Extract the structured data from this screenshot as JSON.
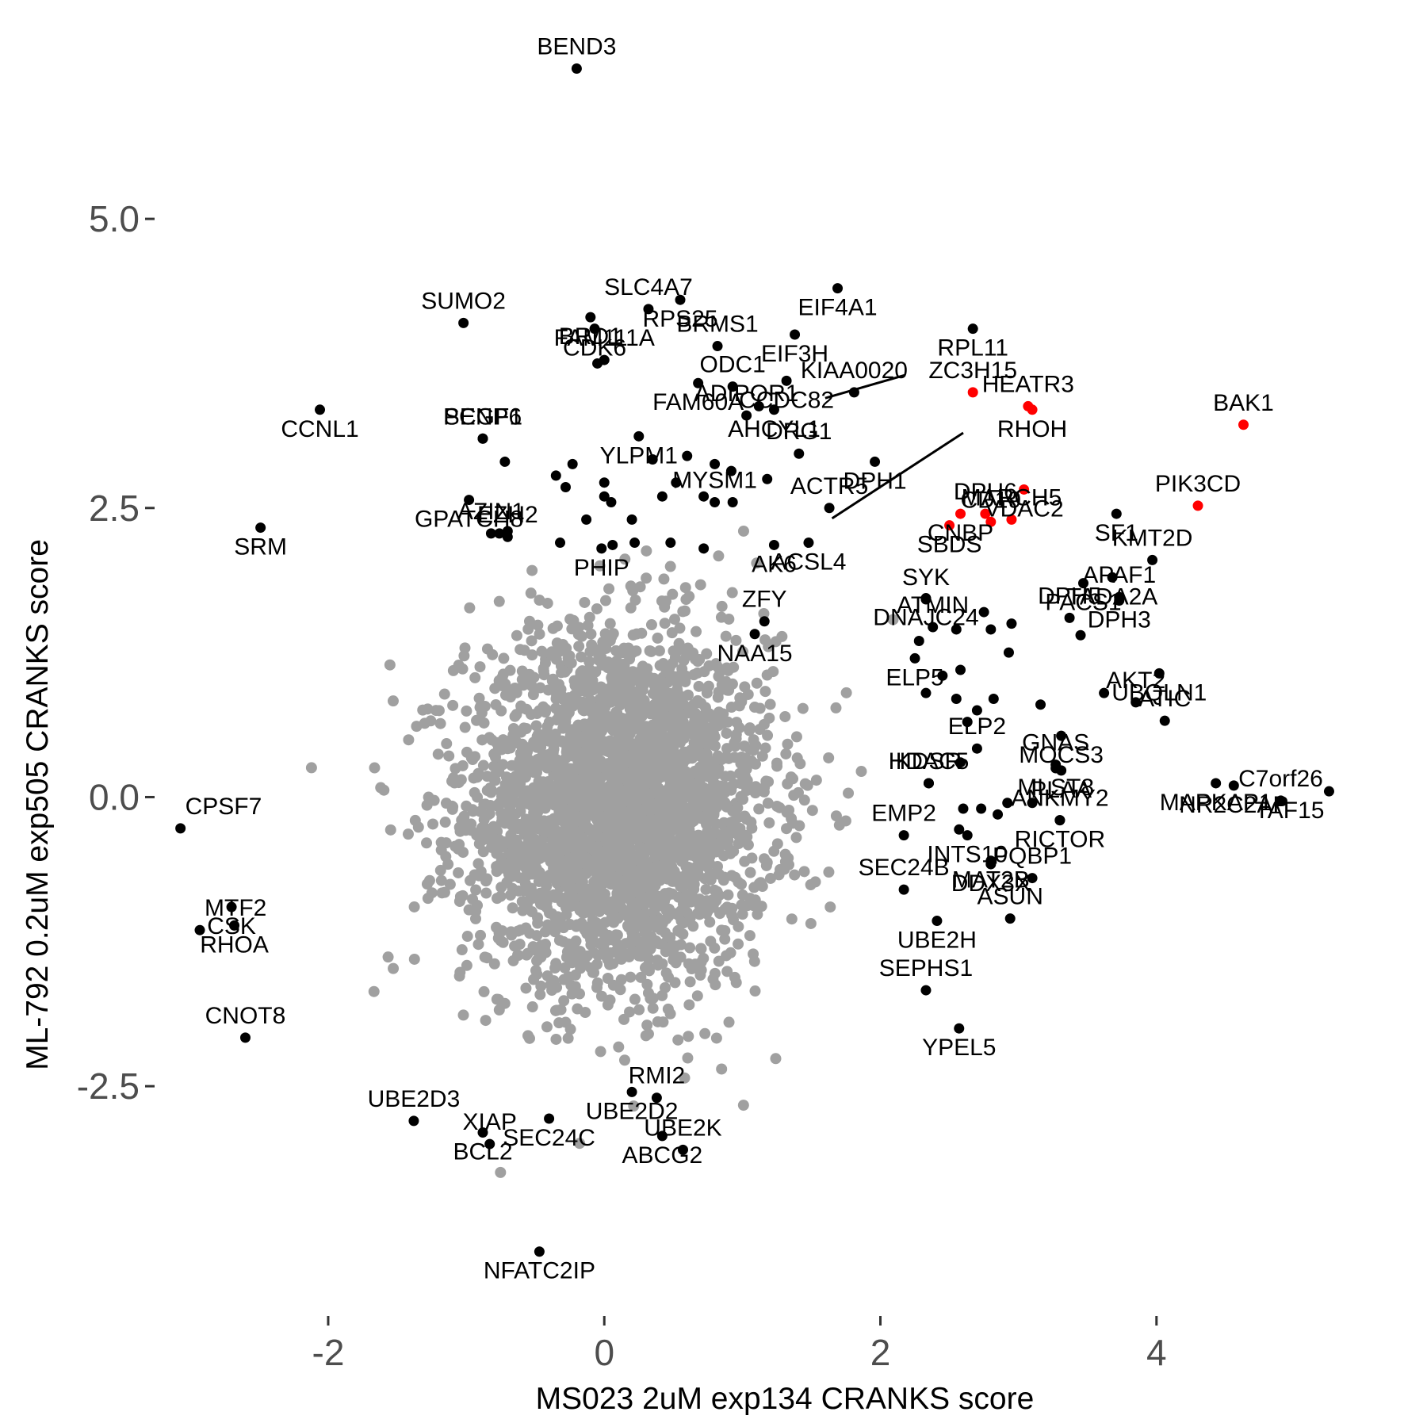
{
  "chart_data": {
    "type": "scatter",
    "xlabel": "MS023 2uM exp134 CRANKS score",
    "ylabel": "ML-792 0.2uM exp505 CRANKS score",
    "xlim": [
      -3.2,
      5.5
    ],
    "ylim": [
      -4.35,
      6.55
    ],
    "x_ticks": [
      -2,
      0,
      2,
      4
    ],
    "y_ticks": [
      -2.5,
      0.0,
      2.5,
      5.0
    ],
    "x_tick_labels": [
      "-2",
      "0",
      "2",
      "4"
    ],
    "y_tick_labels": [
      "-2.5",
      "0.0",
      "2.5",
      "5.0"
    ],
    "grid": false,
    "colors": {
      "background": "#ffffff",
      "bulk": "#a0a0a0",
      "highlight": "#000000",
      "selected": "#ff0000",
      "tick": "#333333"
    },
    "bulk_cloud": {
      "description_free": true,
      "count": 3200,
      "center_x": 0.1,
      "center_y": -0.1,
      "sd_x": 0.55,
      "sd_y": 0.75
    },
    "labeled_points": [
      {
        "gene": "BEND3",
        "x": -0.2,
        "y": 6.3,
        "color": "black"
      },
      {
        "gene": "RPS25",
        "x": 0.55,
        "y": 4.3,
        "color": "black"
      },
      {
        "gene": "ODC1",
        "x": 0.93,
        "y": 3.55,
        "color": "black"
      },
      {
        "gene": "EIF4A1",
        "x": 1.69,
        "y": 4.4,
        "color": "black"
      },
      {
        "gene": "SLC4A7",
        "x": 0.32,
        "y": 4.22,
        "color": "black"
      },
      {
        "gene": "BRD1",
        "x": -0.1,
        "y": 4.15,
        "color": "black"
      },
      {
        "gene": "BRMS1",
        "x": 0.82,
        "y": 3.9,
        "color": "black"
      },
      {
        "gene": "EIF3H",
        "x": 1.38,
        "y": 4.0,
        "color": "black"
      },
      {
        "gene": "SUMO2",
        "x": -1.02,
        "y": 4.1,
        "color": "black"
      },
      {
        "gene": "CDK6",
        "x": -0.07,
        "y": 4.05,
        "color": "black"
      },
      {
        "gene": "FAM111A",
        "x": 0.0,
        "y": 3.78,
        "color": "black"
      },
      {
        "gene": "CCDC82",
        "x": 1.32,
        "y": 3.6,
        "color": "black"
      },
      {
        "gene": "KIAA0020",
        "x": 1.81,
        "y": 3.5,
        "color": "black"
      },
      {
        "gene": "RPL11",
        "x": 2.67,
        "y": 4.05,
        "color": "black"
      },
      {
        "gene": "ZC3H15",
        "x": 2.67,
        "y": 3.5,
        "color": "red"
      },
      {
        "gene": "CCNL1",
        "x": -2.06,
        "y": 3.35,
        "color": "black"
      },
      {
        "gene": "PCGF1",
        "x": -0.88,
        "y": 3.1,
        "color": "black"
      },
      {
        "gene": "FAM60A",
        "x": 0.68,
        "y": 3.58,
        "color": "black"
      },
      {
        "gene": "HEATR3",
        "x": 3.07,
        "y": 3.38,
        "color": "red"
      },
      {
        "gene": "RHOH",
        "x": 3.1,
        "y": 3.35,
        "color": "red"
      },
      {
        "gene": "ADIPOR1",
        "x": 1.03,
        "y": 3.3,
        "color": "black"
      },
      {
        "gene": "AHCYL1",
        "x": 1.23,
        "y": 3.35,
        "color": "black"
      },
      {
        "gene": "SENP6",
        "x": -0.88,
        "y": 3.1,
        "color": "black"
      },
      {
        "gene": "YLPM1",
        "x": 0.25,
        "y": 3.12,
        "color": "black"
      },
      {
        "gene": "DRG1",
        "x": 1.41,
        "y": 2.97,
        "color": "black"
      },
      {
        "gene": "DPH1",
        "x": 1.96,
        "y": 2.9,
        "color": "black"
      },
      {
        "gene": "CD19",
        "x": 2.8,
        "y": 2.38,
        "color": "red"
      },
      {
        "gene": "VDAC2",
        "x": 3.04,
        "y": 2.66,
        "color": "red"
      },
      {
        "gene": "BAK1",
        "x": 4.63,
        "y": 3.22,
        "color": "red"
      },
      {
        "gene": "GPATCH8",
        "x": -0.98,
        "y": 2.57,
        "color": "black"
      },
      {
        "gene": "ACTR5",
        "x": 1.63,
        "y": 2.5,
        "color": "black"
      },
      {
        "gene": "CNBP",
        "x": 2.58,
        "y": 2.45,
        "color": "red"
      },
      {
        "gene": "MARCH5",
        "x": 2.95,
        "y": 2.4,
        "color": "red"
      },
      {
        "gene": "SF1",
        "x": 3.71,
        "y": 2.45,
        "color": "black"
      },
      {
        "gene": "PIK3CD",
        "x": 4.3,
        "y": 2.52,
        "color": "red"
      },
      {
        "gene": "ACSL4",
        "x": 1.48,
        "y": 2.2,
        "color": "black"
      },
      {
        "gene": "MYSM1",
        "x": 0.8,
        "y": 2.55,
        "color": "black"
      },
      {
        "gene": "SRM",
        "x": -2.49,
        "y": 2.33,
        "color": "black"
      },
      {
        "gene": "AZIN1",
        "x": -0.82,
        "y": 2.28,
        "color": "black"
      },
      {
        "gene": "SBDS",
        "x": 2.5,
        "y": 2.35,
        "color": "red"
      },
      {
        "gene": "DPH6",
        "x": 2.76,
        "y": 2.45,
        "color": "red"
      },
      {
        "gene": "TADA2A",
        "x": 3.68,
        "y": 1.9,
        "color": "black"
      },
      {
        "gene": "KMT2D",
        "x": 3.97,
        "y": 2.05,
        "color": "black"
      },
      {
        "gene": "AK6",
        "x": 1.23,
        "y": 2.18,
        "color": "black"
      },
      {
        "gene": "EZH2",
        "x": -0.7,
        "y": 2.25,
        "color": "black"
      },
      {
        "gene": "PHIP",
        "x": -0.02,
        "y": 2.15,
        "color": "black"
      },
      {
        "gene": "ZFY",
        "x": 1.16,
        "y": 1.52,
        "color": "black"
      },
      {
        "gene": "DNAJC24",
        "x": 2.33,
        "y": 1.72,
        "color": "black"
      },
      {
        "gene": "ATMIN",
        "x": 2.38,
        "y": 1.47,
        "color": "black"
      },
      {
        "gene": "PACS1",
        "x": 3.47,
        "y": 1.85,
        "color": "black"
      },
      {
        "gene": "APAF1",
        "x": 3.73,
        "y": 1.73,
        "color": "black"
      },
      {
        "gene": "NAA15",
        "x": 1.09,
        "y": 1.41,
        "color": "black"
      },
      {
        "gene": "SYK",
        "x": 2.33,
        "y": 1.71,
        "color": "black"
      },
      {
        "gene": "DPH3",
        "x": 3.73,
        "y": 1.7,
        "color": "black"
      },
      {
        "gene": "AKT2",
        "x": 3.85,
        "y": 0.82,
        "color": "black"
      },
      {
        "gene": "ELP5",
        "x": 2.25,
        "y": 1.2,
        "color": "black"
      },
      {
        "gene": "DPH5",
        "x": 3.37,
        "y": 1.55,
        "color": "black"
      },
      {
        "gene": "UBQLN1",
        "x": 4.02,
        "y": 1.07,
        "color": "black"
      },
      {
        "gene": "ATIC",
        "x": 4.06,
        "y": 0.66,
        "color": "black"
      },
      {
        "gene": "TAF15",
        "x": 5.25,
        "y": 0.05,
        "color": "black"
      },
      {
        "gene": "ELP2",
        "x": 2.7,
        "y": 0.42,
        "color": "black"
      },
      {
        "gene": "MOCS3",
        "x": 3.31,
        "y": 0.53,
        "color": "black"
      },
      {
        "gene": "KDSR",
        "x": 2.35,
        "y": 0.12,
        "color": "black"
      },
      {
        "gene": "NR2C2AP",
        "x": 4.56,
        "y": 0.1,
        "color": "black"
      },
      {
        "gene": "GNAS",
        "x": 3.27,
        "y": 0.28,
        "color": "black"
      },
      {
        "gene": "PLAA",
        "x": 3.31,
        "y": 0.23,
        "color": "black"
      },
      {
        "gene": "HDAC5",
        "x": 2.35,
        "y": 0.12,
        "color": "black"
      },
      {
        "gene": "MLST8",
        "x": 3.27,
        "y": 0.25,
        "color": "black"
      },
      {
        "gene": "EMP2",
        "x": 2.17,
        "y": -0.33,
        "color": "black"
      },
      {
        "gene": "INTS10",
        "x": 2.63,
        "y": -0.33,
        "color": "black"
      },
      {
        "gene": "ANKMY2",
        "x": 3.3,
        "y": -0.2,
        "color": "black"
      },
      {
        "gene": "RICTOR",
        "x": 3.3,
        "y": -0.2,
        "color": "black"
      },
      {
        "gene": "C7orf26",
        "x": 4.9,
        "y": -0.03,
        "color": "black"
      },
      {
        "gene": "MAPKAP1",
        "x": 4.43,
        "y": 0.12,
        "color": "black"
      },
      {
        "gene": "SEC24B",
        "x": 2.17,
        "y": -0.8,
        "color": "black"
      },
      {
        "gene": "MAT2B",
        "x": 2.8,
        "y": -0.55,
        "color": "black"
      },
      {
        "gene": "PQBP1",
        "x": 3.1,
        "y": -0.7,
        "color": "black"
      },
      {
        "gene": "DDX3X",
        "x": 2.8,
        "y": -0.58,
        "color": "black"
      },
      {
        "gene": "ASUN",
        "x": 2.94,
        "y": -1.05,
        "color": "black"
      },
      {
        "gene": "UBE2H",
        "x": 2.41,
        "y": -1.07,
        "color": "black"
      },
      {
        "gene": "SEPHS1",
        "x": 2.33,
        "y": -1.67,
        "color": "black"
      },
      {
        "gene": "YPEL5",
        "x": 2.57,
        "y": -2.0,
        "color": "black"
      },
      {
        "gene": "CPSF7",
        "x": -3.07,
        "y": -0.27,
        "color": "black"
      },
      {
        "gene": "CSK",
        "x": -2.7,
        "y": -0.95,
        "color": "black"
      },
      {
        "gene": "MTF2",
        "x": -2.93,
        "y": -1.15,
        "color": "black"
      },
      {
        "gene": "RHOA",
        "x": -2.68,
        "y": -1.11,
        "color": "black"
      },
      {
        "gene": "CNOT8",
        "x": -2.6,
        "y": -2.08,
        "color": "black"
      },
      {
        "gene": "UBE2D2",
        "x": 0.2,
        "y": -2.55,
        "color": "black"
      },
      {
        "gene": "UBE2D3",
        "x": -1.38,
        "y": -2.8,
        "color": "black"
      },
      {
        "gene": "SEC24C",
        "x": -0.4,
        "y": -2.78,
        "color": "black"
      },
      {
        "gene": "RMI2",
        "x": 0.38,
        "y": -2.6,
        "color": "black"
      },
      {
        "gene": "BCL2",
        "x": -0.88,
        "y": -2.9,
        "color": "black"
      },
      {
        "gene": "XIAP",
        "x": -0.83,
        "y": -3.0,
        "color": "black"
      },
      {
        "gene": "ABCG2",
        "x": 0.42,
        "y": -2.93,
        "color": "black"
      },
      {
        "gene": "UBE2K",
        "x": 0.57,
        "y": -3.05,
        "color": "black"
      },
      {
        "gene": "NFATC2IP",
        "x": -0.47,
        "y": -3.93,
        "color": "black"
      }
    ],
    "extra_points": [
      {
        "x": -0.05,
        "y": 3.75
      },
      {
        "x": 1.12,
        "y": 3.38
      },
      {
        "x": 0.8,
        "y": 2.88
      },
      {
        "x": 0.92,
        "y": 2.82
      },
      {
        "x": 0.6,
        "y": 2.95
      },
      {
        "x": 0.35,
        "y": 2.92
      },
      {
        "x": 0.52,
        "y": 2.72
      },
      {
        "x": 0.0,
        "y": 2.72
      },
      {
        "x": -0.72,
        "y": 2.9
      },
      {
        "x": -0.35,
        "y": 2.78
      },
      {
        "x": -0.28,
        "y": 2.68
      },
      {
        "x": -0.23,
        "y": 2.88
      },
      {
        "x": 0.0,
        "y": 2.6
      },
      {
        "x": 0.42,
        "y": 2.6
      },
      {
        "x": 0.72,
        "y": 2.6
      },
      {
        "x": 0.05,
        "y": 2.55
      },
      {
        "x": 0.2,
        "y": 2.4
      },
      {
        "x": -0.13,
        "y": 2.4
      },
      {
        "x": 0.93,
        "y": 2.55
      },
      {
        "x": 1.18,
        "y": 2.75
      },
      {
        "x": 0.72,
        "y": 2.15
      },
      {
        "x": 0.48,
        "y": 2.2
      },
      {
        "x": 0.22,
        "y": 2.2
      },
      {
        "x": -0.32,
        "y": 2.2
      },
      {
        "x": -0.7,
        "y": 2.3
      },
      {
        "x": -0.76,
        "y": 2.28
      },
      {
        "x": 0.06,
        "y": 2.18
      },
      {
        "x": 2.75,
        "y": 1.6
      },
      {
        "x": 2.95,
        "y": 1.5
      },
      {
        "x": 2.8,
        "y": 1.45
      },
      {
        "x": 2.55,
        "y": 1.45
      },
      {
        "x": 2.28,
        "y": 1.35
      },
      {
        "x": 2.93,
        "y": 1.25
      },
      {
        "x": 2.58,
        "y": 1.1
      },
      {
        "x": 2.45,
        "y": 1.05
      },
      {
        "x": 2.55,
        "y": 0.85
      },
      {
        "x": 2.7,
        "y": 0.75
      },
      {
        "x": 2.82,
        "y": 0.85
      },
      {
        "x": 2.63,
        "y": 0.65
      },
      {
        "x": 2.33,
        "y": 0.9
      },
      {
        "x": 2.58,
        "y": 0.3
      },
      {
        "x": 2.6,
        "y": -0.1
      },
      {
        "x": 2.57,
        "y": -0.28
      },
      {
        "x": 2.73,
        "y": -0.1
      },
      {
        "x": 2.92,
        "y": -0.05
      },
      {
        "x": 3.1,
        "y": -0.05
      },
      {
        "x": 2.85,
        "y": -0.15
      },
      {
        "x": 3.45,
        "y": 1.4
      },
      {
        "x": 3.62,
        "y": 0.9
      },
      {
        "x": 3.16,
        "y": 0.8
      }
    ],
    "leader_lines": [
      {
        "from": [
          1.6,
          3.45
        ],
        "to": [
          2.18,
          3.65
        ]
      },
      {
        "from": [
          1.65,
          2.41
        ],
        "to": [
          2.6,
          3.15
        ]
      }
    ]
  }
}
